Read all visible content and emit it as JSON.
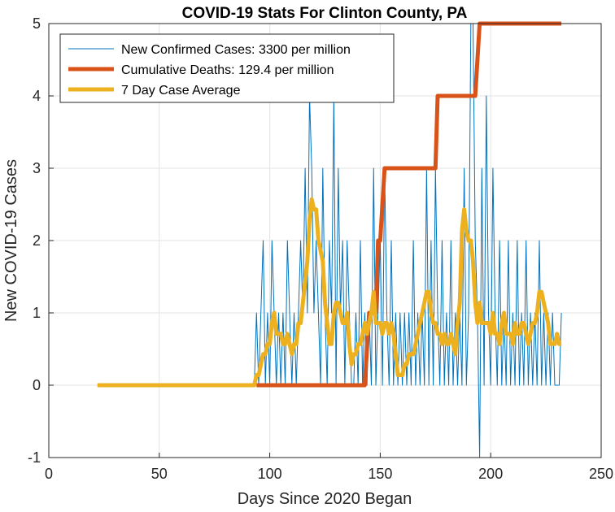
{
  "chart_data": {
    "type": "line",
    "title": "COVID-19 Stats For Clinton County, PA",
    "xlabel": "Days Since 2020 Began",
    "ylabel": "New COVID-19 Cases",
    "xlim": [
      0,
      250
    ],
    "ylim": [
      -1,
      5
    ],
    "xticks": [
      0,
      50,
      100,
      150,
      200,
      250
    ],
    "yticks": [
      -1,
      0,
      1,
      2,
      3,
      4,
      5
    ],
    "x_tick_labels": [
      "0",
      "50",
      "100",
      "150",
      "200",
      "250"
    ],
    "y_tick_labels": [
      "-1",
      "0",
      "1",
      "2",
      "3",
      "4",
      "5"
    ],
    "grid": true,
    "legend_position": "top-left",
    "series": [
      {
        "name": "New Confirmed Cases: 3300 per million",
        "color": "#0072BD",
        "points": [
          [
            22,
            0
          ],
          [
            93,
            0
          ],
          [
            94,
            1
          ],
          [
            95,
            0
          ],
          [
            96,
            1
          ],
          [
            97,
            2
          ],
          [
            98,
            0
          ],
          [
            99,
            1
          ],
          [
            100,
            0
          ],
          [
            101,
            2
          ],
          [
            102,
            1
          ],
          [
            103,
            0
          ],
          [
            104,
            1
          ],
          [
            105,
            0
          ],
          [
            106,
            1
          ],
          [
            107,
            0
          ],
          [
            108,
            2
          ],
          [
            109,
            1
          ],
          [
            110,
            0
          ],
          [
            111,
            1
          ],
          [
            112,
            0
          ],
          [
            113,
            1
          ],
          [
            114,
            2
          ],
          [
            115,
            1
          ],
          [
            116,
            3
          ],
          [
            117,
            1
          ],
          [
            118,
            4
          ],
          [
            119,
            3
          ],
          [
            120,
            1
          ],
          [
            121,
            2
          ],
          [
            122,
            1
          ],
          [
            123,
            0
          ],
          [
            124,
            3
          ],
          [
            125,
            1
          ],
          [
            126,
            0
          ],
          [
            127,
            2
          ],
          [
            128,
            1
          ],
          [
            129,
            4
          ],
          [
            130,
            0
          ],
          [
            131,
            3
          ],
          [
            132,
            1
          ],
          [
            133,
            2
          ],
          [
            134,
            0
          ],
          [
            135,
            2
          ],
          [
            136,
            1
          ],
          [
            137,
            0
          ],
          [
            138,
            0
          ],
          [
            139,
            1
          ],
          [
            140,
            0
          ],
          [
            141,
            2
          ],
          [
            142,
            0
          ],
          [
            143,
            1
          ],
          [
            144,
            0
          ],
          [
            145,
            1
          ],
          [
            146,
            0
          ],
          [
            147,
            3
          ],
          [
            148,
            0
          ],
          [
            149,
            1
          ],
          [
            150,
            2
          ],
          [
            151,
            0
          ],
          [
            152,
            3
          ],
          [
            153,
            1
          ],
          [
            154,
            0
          ],
          [
            155,
            2
          ],
          [
            156,
            0
          ],
          [
            157,
            1
          ],
          [
            158,
            0
          ],
          [
            159,
            1
          ],
          [
            160,
            0
          ],
          [
            161,
            1
          ],
          [
            162,
            0
          ],
          [
            163,
            1
          ],
          [
            164,
            0
          ],
          [
            165,
            2
          ],
          [
            166,
            0
          ],
          [
            167,
            1
          ],
          [
            168,
            0
          ],
          [
            169,
            1
          ],
          [
            170,
            0
          ],
          [
            171,
            3
          ],
          [
            172,
            0
          ],
          [
            173,
            2
          ],
          [
            174,
            0
          ],
          [
            175,
            3
          ],
          [
            176,
            1
          ],
          [
            177,
            0
          ],
          [
            178,
            2
          ],
          [
            179,
            0
          ],
          [
            180,
            1
          ],
          [
            181,
            0
          ],
          [
            182,
            2
          ],
          [
            183,
            0
          ],
          [
            184,
            1
          ],
          [
            185,
            0
          ],
          [
            186,
            1
          ],
          [
            187,
            0
          ],
          [
            188,
            3
          ],
          [
            189,
            0
          ],
          [
            190,
            1
          ],
          [
            191,
            5
          ],
          [
            192,
            5
          ],
          [
            193,
            2
          ],
          [
            194,
            1
          ],
          [
            195,
            -1
          ],
          [
            196,
            3
          ],
          [
            197,
            0
          ],
          [
            198,
            4
          ],
          [
            199,
            1
          ],
          [
            200,
            0
          ],
          [
            201,
            3
          ],
          [
            202,
            1
          ],
          [
            203,
            0
          ],
          [
            204,
            2
          ],
          [
            205,
            0
          ],
          [
            206,
            1
          ],
          [
            207,
            0
          ],
          [
            208,
            2
          ],
          [
            209,
            0
          ],
          [
            210,
            1
          ],
          [
            211,
            0
          ],
          [
            212,
            2
          ],
          [
            213,
            0
          ],
          [
            214,
            1
          ],
          [
            215,
            0
          ],
          [
            216,
            2
          ],
          [
            217,
            0
          ],
          [
            218,
            1
          ],
          [
            219,
            0
          ],
          [
            220,
            1
          ],
          [
            221,
            0
          ],
          [
            222,
            2
          ],
          [
            223,
            0
          ],
          [
            224,
            1
          ],
          [
            225,
            0
          ],
          [
            226,
            1
          ],
          [
            227,
            0
          ],
          [
            228,
            1
          ],
          [
            229,
            0
          ],
          [
            230,
            0
          ],
          [
            231,
            0
          ],
          [
            232,
            1
          ]
        ]
      },
      {
        "name": "Cumulative Deaths: 129.4 per million",
        "color": "#D95319",
        "points": [
          [
            94,
            0
          ],
          [
            143,
            0
          ],
          [
            145,
            1
          ],
          [
            148,
            1
          ],
          [
            149,
            2
          ],
          [
            150,
            2
          ],
          [
            152,
            3
          ],
          [
            175,
            3
          ],
          [
            176,
            4
          ],
          [
            193,
            4
          ],
          [
            195,
            5
          ],
          [
            232,
            5
          ]
        ]
      },
      {
        "name": "7 Day Case Average",
        "color": "#EDB120",
        "points": [
          [
            22,
            0
          ],
          [
            93,
            0
          ],
          [
            94,
            0.14
          ],
          [
            95,
            0.14
          ],
          [
            96,
            0.29
          ],
          [
            97,
            0.43
          ],
          [
            98,
            0.43
          ],
          [
            99,
            0.57
          ],
          [
            100,
            0.57
          ],
          [
            101,
            0.86
          ],
          [
            102,
            1.0
          ],
          [
            103,
            0.71
          ],
          [
            104,
            0.71
          ],
          [
            105,
            0.71
          ],
          [
            106,
            0.57
          ],
          [
            107,
            0.57
          ],
          [
            108,
            0.71
          ],
          [
            109,
            0.57
          ],
          [
            110,
            0.43
          ],
          [
            111,
            0.57
          ],
          [
            112,
            0.57
          ],
          [
            113,
            0.86
          ],
          [
            114,
            0.86
          ],
          [
            115,
            1.14
          ],
          [
            116,
            1.43
          ],
          [
            117,
            1.71
          ],
          [
            118,
            2.29
          ],
          [
            119,
            2.57
          ],
          [
            120,
            2.43
          ],
          [
            121,
            2.43
          ],
          [
            122,
            2.0
          ],
          [
            123,
            1.86
          ],
          [
            124,
            1.71
          ],
          [
            125,
            1.14
          ],
          [
            126,
            0.86
          ],
          [
            127,
            0.57
          ],
          [
            128,
            0.57
          ],
          [
            129,
            1.0
          ],
          [
            130,
            1.14
          ],
          [
            131,
            1.14
          ],
          [
            132,
            1.0
          ],
          [
            133,
            0.86
          ],
          [
            134,
            0.86
          ],
          [
            135,
            1.0
          ],
          [
            136,
            0.57
          ],
          [
            137,
            0.29
          ],
          [
            138,
            0.43
          ],
          [
            139,
            0.43
          ],
          [
            140,
            0.57
          ],
          [
            141,
            0.57
          ],
          [
            142,
            0.71
          ],
          [
            143,
            0.86
          ],
          [
            144,
            0.71
          ],
          [
            145,
            0.86
          ],
          [
            146,
            1.0
          ],
          [
            147,
            1.29
          ],
          [
            148,
            0.86
          ],
          [
            149,
            0.86
          ],
          [
            150,
            0.86
          ],
          [
            151,
            0.71
          ],
          [
            152,
            0.86
          ],
          [
            153,
            0.86
          ],
          [
            154,
            0.71
          ],
          [
            155,
            0.86
          ],
          [
            156,
            0.71
          ],
          [
            157,
            0.43
          ],
          [
            158,
            0.14
          ],
          [
            159,
            0.14
          ],
          [
            160,
            0.14
          ],
          [
            161,
            0.29
          ],
          [
            162,
            0.29
          ],
          [
            163,
            0.43
          ],
          [
            164,
            0.43
          ],
          [
            165,
            0.43
          ],
          [
            166,
            0.57
          ],
          [
            167,
            0.71
          ],
          [
            168,
            0.86
          ],
          [
            169,
            1.0
          ],
          [
            170,
            1.14
          ],
          [
            171,
            1.29
          ],
          [
            172,
            1.29
          ],
          [
            173,
            1.0
          ],
          [
            174,
            0.86
          ],
          [
            175,
            0.86
          ],
          [
            176,
            0.71
          ],
          [
            177,
            0.71
          ],
          [
            178,
            0.57
          ],
          [
            179,
            0.71
          ],
          [
            180,
            0.57
          ],
          [
            181,
            0.57
          ],
          [
            182,
            0.71
          ],
          [
            183,
            0.57
          ],
          [
            184,
            0.43
          ],
          [
            185,
            0.86
          ],
          [
            186,
            1.14
          ],
          [
            187,
            2.14
          ],
          [
            188,
            2.43
          ],
          [
            189,
            2.14
          ],
          [
            190,
            2.0
          ],
          [
            191,
            2.0
          ],
          [
            192,
            1.71
          ],
          [
            193,
            1.14
          ],
          [
            194,
            0.86
          ],
          [
            195,
            1.14
          ],
          [
            196,
            0.86
          ],
          [
            197,
            0.86
          ],
          [
            198,
            0.86
          ],
          [
            199,
            0.86
          ],
          [
            200,
            0.71
          ],
          [
            201,
            1.0
          ],
          [
            202,
            0.71
          ],
          [
            203,
            0.71
          ],
          [
            204,
            0.57
          ],
          [
            205,
            0.86
          ],
          [
            206,
            1.0
          ],
          [
            207,
            0.71
          ],
          [
            208,
            0.71
          ],
          [
            209,
            0.71
          ],
          [
            210,
            0.57
          ],
          [
            211,
            0.86
          ],
          [
            212,
            0.71
          ],
          [
            213,
            0.71
          ],
          [
            214,
            0.86
          ],
          [
            215,
            0.86
          ],
          [
            216,
            0.71
          ],
          [
            217,
            0.57
          ],
          [
            218,
            0.71
          ],
          [
            219,
            0.86
          ],
          [
            220,
            0.86
          ],
          [
            221,
            1.0
          ],
          [
            222,
            1.29
          ],
          [
            223,
            1.29
          ],
          [
            224,
            1.14
          ],
          [
            225,
            1.0
          ],
          [
            226,
            0.86
          ],
          [
            227,
            0.57
          ],
          [
            228,
            0.57
          ],
          [
            229,
            0.57
          ],
          [
            230,
            0.71
          ],
          [
            231,
            0.57
          ],
          [
            232,
            0.57
          ]
        ]
      }
    ]
  }
}
